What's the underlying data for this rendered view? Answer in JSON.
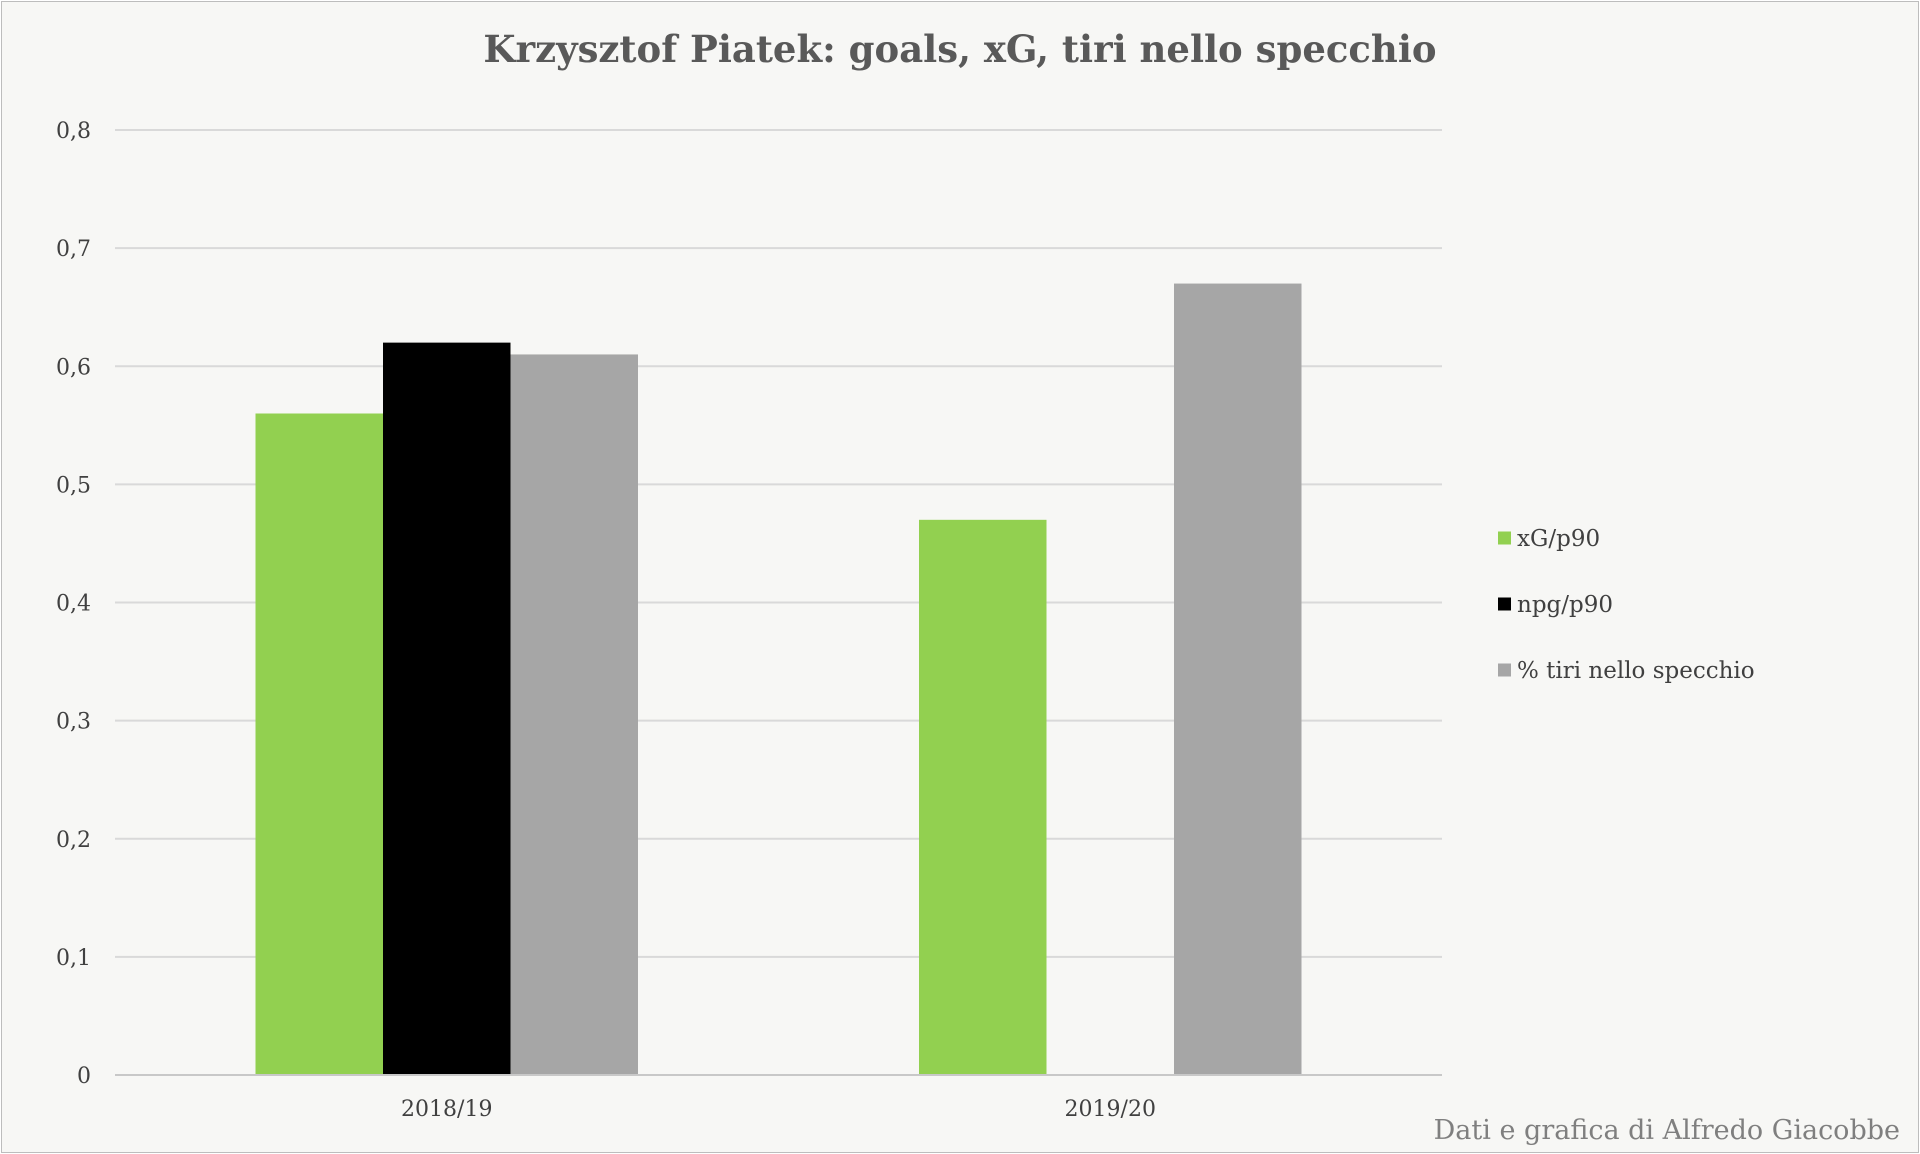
{
  "chart_data": {
    "type": "bar",
    "title": "Krzysztof Piatek: goals, xG, tiri nello specchio",
    "categories": [
      "2018/19",
      "2019/20"
    ],
    "series": [
      {
        "name": "xG/p90",
        "values": [
          0.56,
          0.47
        ],
        "color": "#92d050"
      },
      {
        "name": "npg/p90",
        "values": [
          0.62,
          0
        ],
        "color": "#000000"
      },
      {
        "name": "% tiri nello specchio",
        "values": [
          0.61,
          0.67
        ],
        "color": "#a6a6a6"
      }
    ],
    "ylim": [
      0,
      0.8
    ],
    "yticks": [
      "0",
      "0,1",
      "0,2",
      "0,3",
      "0,4",
      "0,5",
      "0,6",
      "0,7",
      "0,8"
    ],
    "grid": true,
    "legend_position": "right",
    "gridline_color": "#d9d9d9",
    "background_color": "#f7f7f5"
  },
  "credit": "Dati e grafica di Alfredo Giacobbe"
}
